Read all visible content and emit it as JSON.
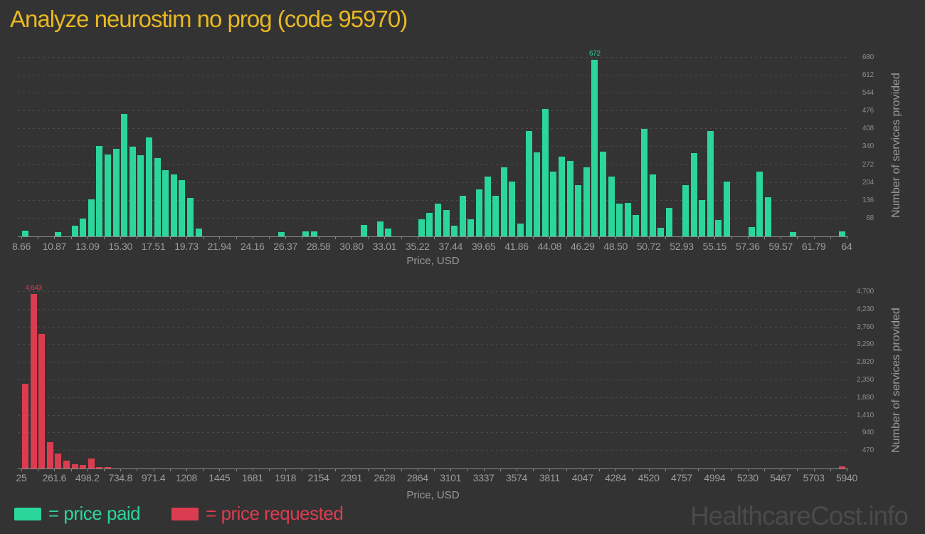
{
  "title": "Analyze neurostim no prog (code 95970)",
  "watermark": "HealthcareCost.info",
  "colors": {
    "paid": "#2bd69b",
    "requested": "#dc3c50",
    "title": "#e9b821"
  },
  "legend": [
    {
      "label": "= price paid",
      "color": "#2bd69b"
    },
    {
      "label": "= price requested",
      "color": "#dc3c50"
    }
  ],
  "chart_data": [
    {
      "type": "bar",
      "name": "price paid",
      "x_title": "Price, USD",
      "y_title": "Number of services provided",
      "color": "#2bd69b",
      "bin_start": 8.66,
      "bin_width": 0.5534,
      "ylim": [
        0,
        696
      ],
      "grid": true,
      "x_ticks": [
        "8.66",
        "10.87",
        "13.09",
        "15.30",
        "17.51",
        "19.73",
        "21.94",
        "24.16",
        "26.37",
        "28.58",
        "30.80",
        "33.01",
        "35.22",
        "37.44",
        "39.65",
        "41.86",
        "44.08",
        "46.29",
        "48.50",
        "50.72",
        "52.93",
        "55.15",
        "57.36",
        "59.57",
        "61.79",
        "64"
      ],
      "y_tick_values": [
        68,
        136,
        204,
        272,
        340,
        408,
        476,
        544,
        612,
        680
      ],
      "y_tick_labels": [
        "68",
        "136",
        "204",
        "272",
        "340",
        "408",
        "476",
        "544",
        "612",
        "680"
      ],
      "values": [
        22,
        0,
        0,
        0,
        16,
        0,
        40,
        68,
        140,
        345,
        312,
        333,
        465,
        342,
        310,
        377,
        298,
        252,
        236,
        214,
        146,
        30,
        0,
        0,
        0,
        0,
        0,
        0,
        0,
        0,
        0,
        16,
        0,
        0,
        18,
        18,
        0,
        0,
        0,
        0,
        0,
        43,
        0,
        57,
        30,
        0,
        0,
        0,
        65,
        90,
        125,
        100,
        40,
        155,
        65,
        180,
        228,
        155,
        262,
        208,
        50,
        400,
        320,
        485,
        247,
        304,
        287,
        195,
        262,
        672,
        322,
        228,
        125,
        127,
        80,
        410,
        235,
        33,
        108,
        0,
        195,
        317,
        138,
        400,
        62,
        208,
        0,
        0,
        35,
        247,
        150,
        0,
        0,
        16,
        0,
        0,
        0,
        0,
        0,
        19
      ],
      "annotation": {
        "index": 69,
        "text": "672"
      }
    },
    {
      "type": "bar",
      "name": "price requested",
      "x_title": "Price, USD",
      "y_title": "Number of services provided",
      "color": "#dc3c50",
      "bin_start": 25,
      "bin_width": 59.15,
      "ylim": [
        0,
        4700
      ],
      "grid": true,
      "x_ticks": [
        "25",
        "261.6",
        "498.2",
        "734.8",
        "971.4",
        "1208",
        "1445",
        "1681",
        "1918",
        "2154",
        "2391",
        "2628",
        "2864",
        "3101",
        "3337",
        "3574",
        "3811",
        "4047",
        "4284",
        "4520",
        "4757",
        "4994",
        "5230",
        "5467",
        "5703",
        "5940"
      ],
      "y_tick_values": [
        470,
        940,
        1410,
        1880,
        2350,
        2820,
        3290,
        3760,
        4230,
        4700
      ],
      "y_tick_labels": [
        "470",
        "940",
        "1,410",
        "1,880",
        "2,350",
        "2,820",
        "3,290",
        "3,760",
        "4,230",
        "4,700"
      ],
      "values": [
        2260,
        4643,
        3590,
        700,
        400,
        210,
        115,
        100,
        265,
        30,
        45,
        0,
        0,
        0,
        0,
        0,
        0,
        0,
        0,
        0,
        0,
        0,
        0,
        0,
        0,
        0,
        0,
        0,
        0,
        0,
        0,
        0,
        0,
        0,
        0,
        0,
        0,
        0,
        0,
        0,
        0,
        0,
        0,
        0,
        0,
        0,
        0,
        0,
        0,
        0,
        0,
        0,
        0,
        0,
        0,
        0,
        0,
        0,
        0,
        0,
        0,
        0,
        0,
        0,
        0,
        0,
        0,
        0,
        0,
        0,
        0,
        0,
        0,
        0,
        0,
        0,
        0,
        0,
        0,
        0,
        0,
        0,
        0,
        0,
        0,
        0,
        0,
        0,
        0,
        0,
        0,
        0,
        0,
        0,
        0,
        0,
        0,
        0,
        0,
        50
      ],
      "annotation": {
        "index": 1,
        "text": "4,643"
      }
    }
  ]
}
